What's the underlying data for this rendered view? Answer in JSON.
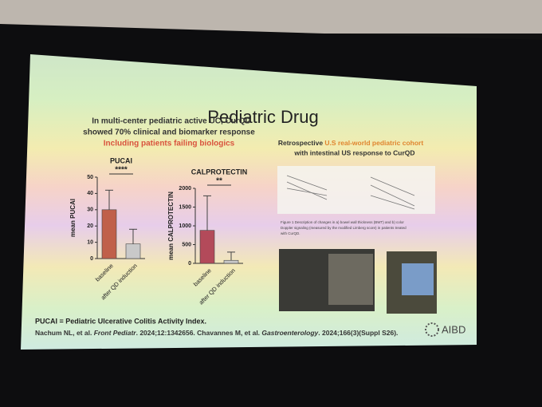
{
  "slide": {
    "title": "Pediatric Drug",
    "left_heading": [
      "In multi-center pediatric active UC, CurQD",
      "showed 70% clinical and biomarker response"
    ],
    "left_highlight": "Including patients failing biologics",
    "right_heading": {
      "lead": "Retrospective ",
      "highlight": "U.S real-world pediatric cohort",
      "rest": "with intestinal US response to CurQD"
    },
    "figure_caption": [
      "Figure 1 Description of changes in a) bowel wall thickness (BWT) and b) color",
      "Doppler signaling (measured by the modified Limberg score) in patients treated",
      "with CurQD."
    ],
    "footnote": "PUCAI = Pediatric Ulcerative Colitis Activity Index.",
    "reference": {
      "a": "Nachum NL, et al. ",
      "b": "Front Pediatr",
      "c": ". 2024;12:1342656. Chavannes M, et al. ",
      "d": "Gastroenterology",
      "e": ". 2024;166(3)(Suppl S26)."
    },
    "logo": "AIBD"
  },
  "chart_data": [
    {
      "type": "bar",
      "title": "PUCAI",
      "y_label": "mean PUCAI",
      "categories": [
        "baseline",
        "after QD induction"
      ],
      "values": [
        30,
        9
      ],
      "errors": [
        12,
        9
      ],
      "colors": [
        "#c0604a",
        "#c9c9c9"
      ],
      "significance": "****",
      "ylim": [
        0,
        50
      ],
      "yticks": [
        0,
        10,
        20,
        30,
        40,
        50
      ]
    },
    {
      "type": "bar",
      "title": "CALPROTECTIN",
      "y_label": "mean CALPROTECTIN",
      "categories": [
        "baseline",
        "after QD induction"
      ],
      "values": [
        880,
        80
      ],
      "errors": [
        920,
        220
      ],
      "colors": [
        "#b34a5a",
        "#c9c9c9"
      ],
      "significance": "**",
      "ylim": [
        0,
        2000
      ],
      "yticks": [
        0,
        500,
        1000,
        1500,
        2000
      ]
    }
  ]
}
